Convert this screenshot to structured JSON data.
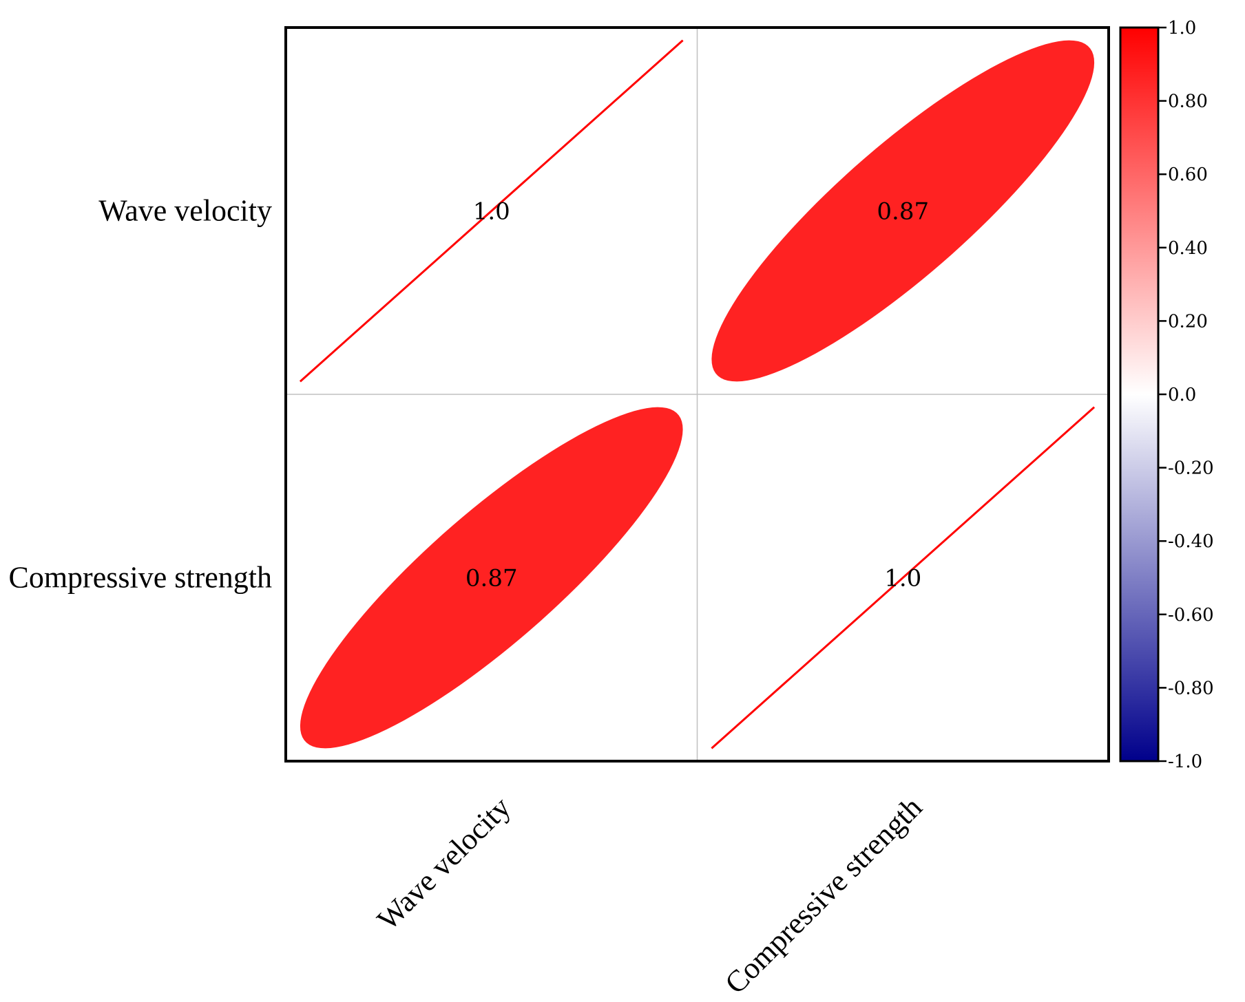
{
  "chart_data": {
    "type": "heatmap",
    "title": "",
    "variables": [
      "Wave velocity",
      "Compressive strength"
    ],
    "matrix": [
      [
        1.0,
        0.87
      ],
      [
        0.87,
        1.0
      ]
    ],
    "cell_labels": [
      [
        "1.0",
        "0.87"
      ],
      [
        "0.87",
        "1.0"
      ]
    ],
    "cell_shape": "ellipse",
    "grid": true,
    "colorbar": {
      "range": [
        -1.0,
        1.0
      ],
      "location": "right",
      "colors": {
        "low": "#00008b",
        "mid": "#ffffff",
        "high": "#ff0000"
      },
      "ticks": [
        {
          "value": 1.0,
          "label": "1.0"
        },
        {
          "value": 0.8,
          "label": "0.80"
        },
        {
          "value": 0.6,
          "label": "0.60"
        },
        {
          "value": 0.4,
          "label": "0.40"
        },
        {
          "value": 0.2,
          "label": "0.20"
        },
        {
          "value": 0.0,
          "label": "0.0"
        },
        {
          "value": -0.2,
          "label": "-0.20"
        },
        {
          "value": -0.4,
          "label": "-0.40"
        },
        {
          "value": -0.6,
          "label": "-0.60"
        },
        {
          "value": -0.8,
          "label": "-0.80"
        },
        {
          "value": -1.0,
          "label": "-1.0"
        }
      ]
    }
  }
}
